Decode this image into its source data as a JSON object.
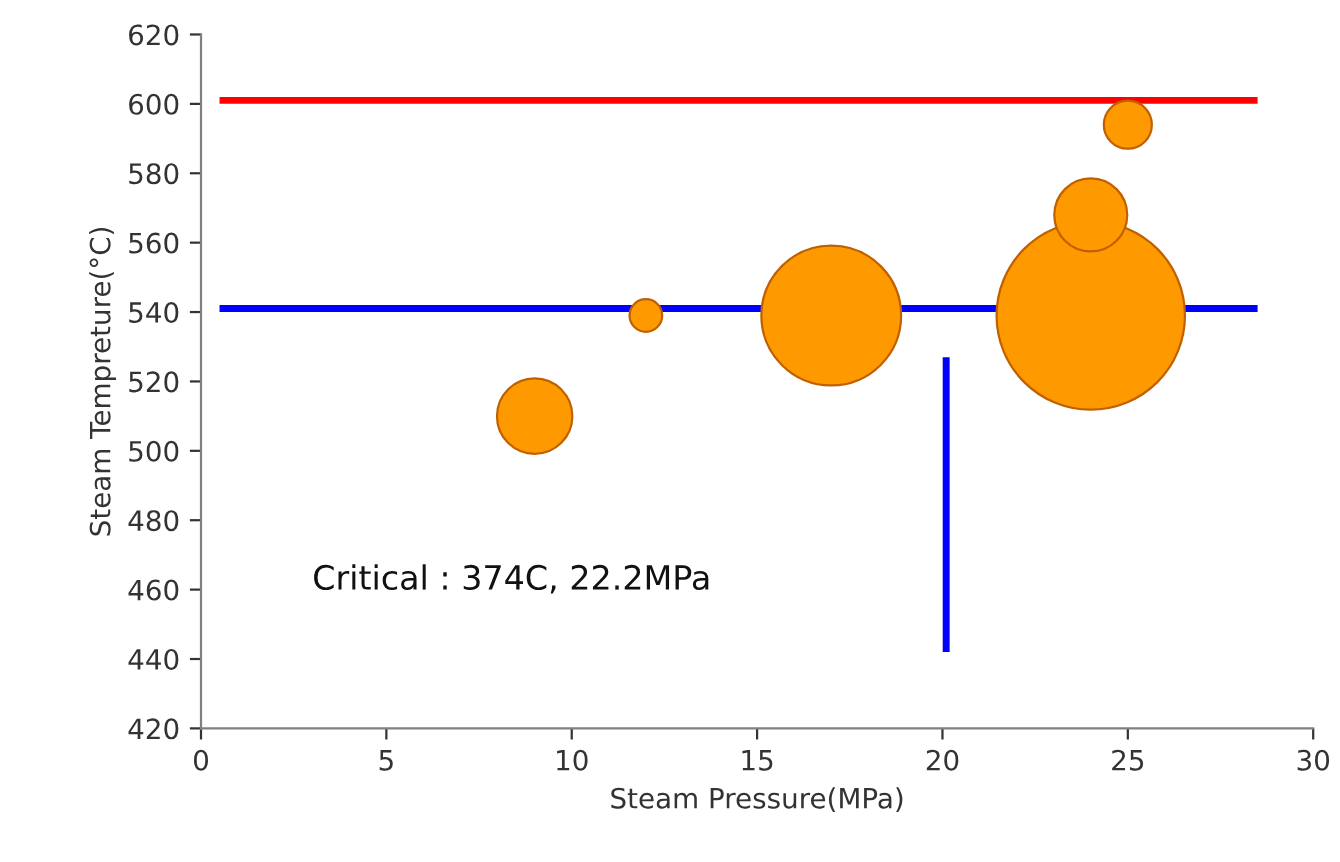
{
  "chart_data": {
    "type": "bubble",
    "xlabel": "Steam Pressure(MPa)",
    "ylabel": "Steam Tempreture(°C)",
    "xlim": [
      0,
      30
    ],
    "xticks": [
      0,
      5,
      10,
      15,
      20,
      25,
      30
    ],
    "ylim": [
      420,
      620
    ],
    "yticks": [
      420,
      440,
      460,
      480,
      500,
      520,
      540,
      560,
      580,
      600,
      620
    ],
    "grid": false,
    "legend": false,
    "series": [
      {
        "color": "#ff9900",
        "x": [
          9,
          12,
          17,
          24,
          24,
          25
        ],
        "values": [
          510,
          539,
          539,
          539,
          568,
          594
        ],
        "sizes": [
          0.16,
          0.03,
          0.55,
          1,
          0.15,
          0.065
        ]
      },
      {
        "type": "line",
        "color": "#ff0000",
        "x": [
          0.5,
          28.5
        ],
        "values": [
          601,
          601
        ]
      },
      {
        "type": "line",
        "color": "#0000ff",
        "x": [
          0.5,
          28.5
        ],
        "values": [
          541,
          541
        ]
      },
      {
        "type": "line",
        "color": "#0000ff",
        "x": [
          20.1,
          20.1
        ],
        "values": [
          442,
          527
        ]
      }
    ],
    "annotations": [
      "Critical : 374C, 22.2MPa"
    ]
  }
}
